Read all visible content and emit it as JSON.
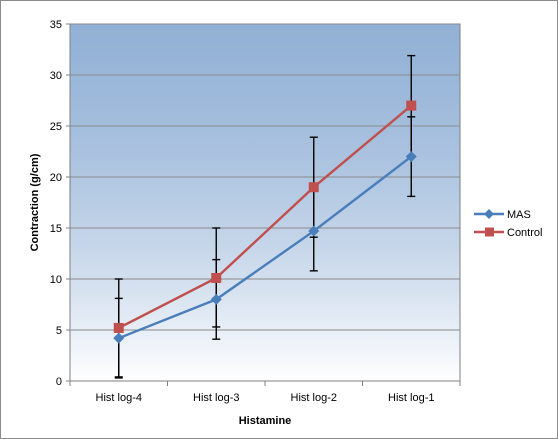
{
  "chart_data": {
    "type": "line",
    "title": "",
    "xlabel": "Histamine",
    "ylabel": "Contraction (g/cm)",
    "categories": [
      "Hist log-4",
      "Hist log-3",
      "Hist log-2",
      "Hist log-1"
    ],
    "ylim": [
      0,
      35
    ],
    "yticks": [
      0,
      5,
      10,
      15,
      20,
      25,
      30,
      35
    ],
    "grid": true,
    "legend_position": "right",
    "series": [
      {
        "name": "MAS",
        "values": [
          4.2,
          8.0,
          14.7,
          22.0
        ],
        "error_low": [
          0.3,
          4.1,
          10.8,
          18.1
        ],
        "error_high": [
          8.1,
          11.9,
          18.6,
          25.9
        ],
        "color": "#4a7ebb",
        "marker": "diamond"
      },
      {
        "name": "Control",
        "values": [
          5.2,
          10.1,
          19.0,
          27.0
        ],
        "error_low": [
          0.4,
          5.3,
          14.1,
          22.1
        ],
        "error_high": [
          10.0,
          15.0,
          23.9,
          31.9
        ],
        "color": "#c0504d",
        "marker": "square"
      }
    ],
    "plot_background": [
      "#4f81bd",
      "#ffffff"
    ]
  }
}
